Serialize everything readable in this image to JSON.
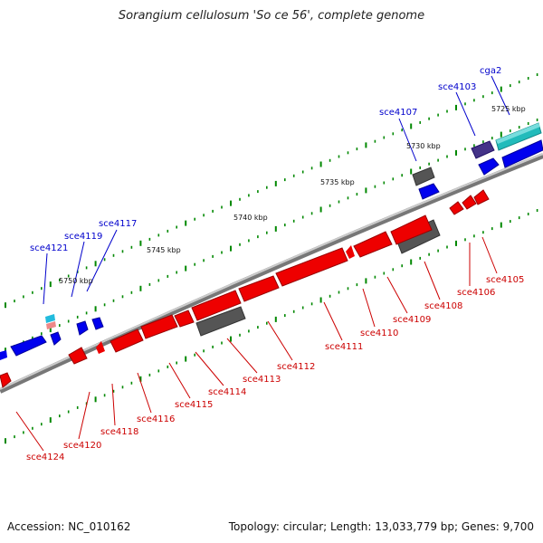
{
  "title": "Sorangium cellulosum 'So ce 56', complete genome",
  "footer": {
    "accession": "Accession: NC_010162",
    "summary": "Topology: circular; Length: 13,033,779 bp; Genes: 9,700"
  },
  "ruler_labels": [
    "5725 kbp",
    "5730 kbp",
    "5735 kbp",
    "5740 kbp",
    "5745 kbp",
    "5750 kbp"
  ],
  "gene_labels": {
    "forward": [
      "cga2",
      "sce4103",
      "sce4107",
      "sce4117",
      "sce4119",
      "sce4121"
    ],
    "reverse": [
      "sce4105",
      "sce4106",
      "sce4108",
      "sce4109",
      "sce4110",
      "sce4111",
      "sce4112",
      "sce4113",
      "sce4114",
      "sce4115",
      "sce4116",
      "sce4118",
      "sce4120",
      "sce4124"
    ]
  },
  "colors": {
    "forward_label": "#0000cc",
    "reverse_label": "#cc0000",
    "forward_gene": "#0000ee",
    "reverse_gene": "#ee0000",
    "rna_gene": "#22bbbb",
    "pseudo_gene": "#555555",
    "backbone": "#888888",
    "tick": "#008800"
  }
}
